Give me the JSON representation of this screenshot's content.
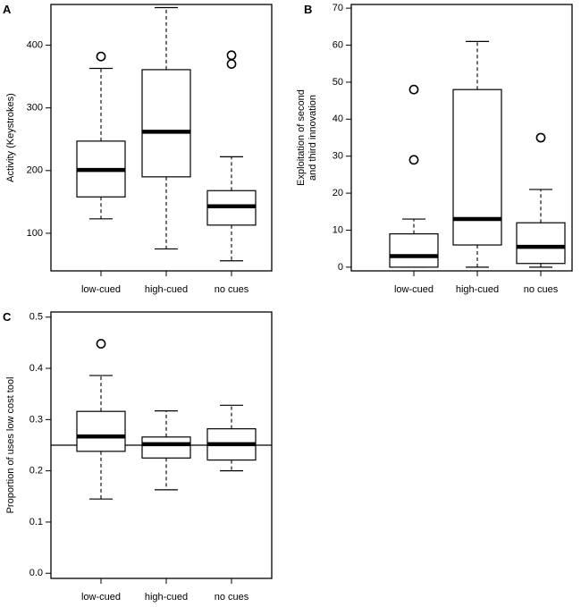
{
  "chart_data": [
    {
      "panel": "A",
      "type": "box",
      "ylabel": "Activity (Keystrokes)",
      "ylim": [
        40,
        465
      ],
      "yticks": [
        100,
        200,
        300,
        400
      ],
      "categories": [
        "low-cued",
        "high-cued",
        "no cues"
      ],
      "boxes": [
        {
          "min": 123,
          "q1": 158,
          "median": 201,
          "q3": 247,
          "max": 363,
          "outliers": [
            382
          ]
        },
        {
          "min": 75,
          "q1": 190,
          "median": 262,
          "q3": 361,
          "max": 460,
          "outliers": []
        },
        {
          "min": 56,
          "q1": 113,
          "median": 143,
          "q3": 168,
          "max": 222,
          "outliers": [
            370,
            384
          ]
        }
      ]
    },
    {
      "panel": "B",
      "type": "box",
      "ylabel": [
        "Exploitation of second",
        "and third innovation"
      ],
      "ylim": [
        -1,
        71
      ],
      "yticks": [
        0,
        10,
        20,
        30,
        40,
        50,
        60,
        70
      ],
      "categories": [
        "low-cued",
        "high-cued",
        "no cues"
      ],
      "boxes": [
        {
          "min": 0,
          "q1": 0,
          "median": 3,
          "q3": 9,
          "max": 13,
          "outliers": [
            29,
            48
          ]
        },
        {
          "min": 0,
          "q1": 6,
          "median": 13,
          "q3": 48,
          "max": 61,
          "outliers": []
        },
        {
          "min": 0,
          "q1": 1,
          "median": 5.5,
          "q3": 12,
          "max": 21,
          "outliers": [
            35
          ]
        }
      ]
    },
    {
      "panel": "C",
      "type": "box",
      "ylabel": "Proportion of uses low cost tool",
      "ylim": [
        -0.01,
        0.51
      ],
      "yticks": [
        0.0,
        0.1,
        0.2,
        0.3,
        0.4,
        0.5
      ],
      "ytick_labels": [
        "0.0",
        "0.1",
        "0.2",
        "0.3",
        "0.4",
        "0.5"
      ],
      "reference_line": 0.25,
      "categories": [
        "low-cued",
        "high-cued",
        "no cues"
      ],
      "boxes": [
        {
          "min": 0.145,
          "q1": 0.238,
          "median": 0.267,
          "q3": 0.316,
          "max": 0.386,
          "outliers": [
            0.448
          ]
        },
        {
          "min": 0.163,
          "q1": 0.225,
          "median": 0.252,
          "q3": 0.266,
          "max": 0.317,
          "outliers": []
        },
        {
          "min": 0.2,
          "q1": 0.221,
          "median": 0.252,
          "q3": 0.282,
          "max": 0.328,
          "outliers": []
        }
      ]
    }
  ]
}
